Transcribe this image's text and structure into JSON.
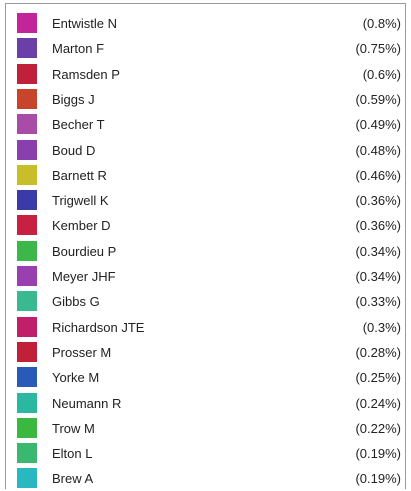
{
  "items": [
    {
      "name": "Entwistle N",
      "share": "(0.8%)",
      "color": "#c4249a"
    },
    {
      "name": "Marton F",
      "share": "(0.75%)",
      "color": "#6a3fa8"
    },
    {
      "name": "Ramsden P",
      "share": "(0.6%)",
      "color": "#c0203a"
    },
    {
      "name": "Biggs J",
      "share": "(0.59%)",
      "color": "#c8442a"
    },
    {
      "name": "Becher T",
      "share": "(0.49%)",
      "color": "#a84ca8"
    },
    {
      "name": "Boud D",
      "share": "(0.48%)",
      "color": "#8a3fae"
    },
    {
      "name": "Barnett R",
      "share": "(0.46%)",
      "color": "#c8be2a"
    },
    {
      "name": "Trigwell K",
      "share": "(0.36%)",
      "color": "#3a3aa8"
    },
    {
      "name": "Kember D",
      "share": "(0.36%)",
      "color": "#c82040"
    },
    {
      "name": "Bourdieu P",
      "share": "(0.34%)",
      "color": "#3cb84a"
    },
    {
      "name": "Meyer JHF",
      "share": "(0.34%)",
      "color": "#9a3fb0"
    },
    {
      "name": "Gibbs G",
      "share": "(0.33%)",
      "color": "#3ab890"
    },
    {
      "name": "Richardson JTE",
      "share": "(0.3%)",
      "color": "#c0206a"
    },
    {
      "name": "Prosser M",
      "share": "(0.28%)",
      "color": "#c02038"
    },
    {
      "name": "Yorke M",
      "share": "(0.25%)",
      "color": "#2a5ab8"
    },
    {
      "name": "Neumann R",
      "share": "(0.24%)",
      "color": "#2ab8a0"
    },
    {
      "name": "Trow M",
      "share": "(0.22%)",
      "color": "#3ab840"
    },
    {
      "name": "Elton L",
      "share": "(0.19%)",
      "color": "#3ab870"
    },
    {
      "name": "Brew A",
      "share": "(0.19%)",
      "color": "#2ab8c0"
    }
  ]
}
